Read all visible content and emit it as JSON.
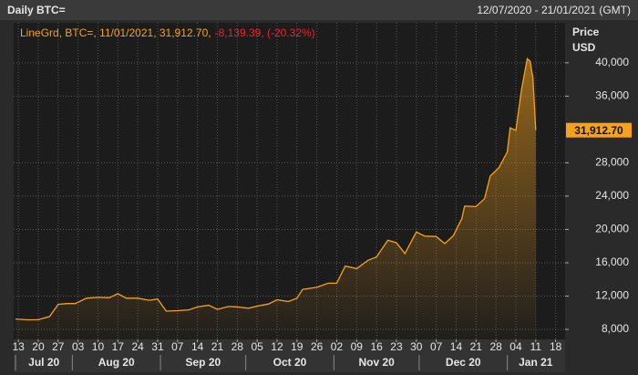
{
  "chart_data": {
    "type": "line",
    "title": "Daily BTC=",
    "subtitle": "12/07/2020 - 21/01/2021 (GMT)",
    "legend_text": "LineGrd, BTC=, 11/01/2021, 31,912.70,",
    "legend_change": "-8,139.39, (-20.32%)",
    "ylabel_lines": [
      "Price",
      "USD"
    ],
    "last_price_label": "31,912.70",
    "x": [
      "2020-07-12",
      "2020-07-16",
      "2020-07-20",
      "2020-07-24",
      "2020-07-27",
      "2020-07-30",
      "2020-08-02",
      "2020-08-06",
      "2020-08-10",
      "2020-08-14",
      "2020-08-17",
      "2020-08-20",
      "2020-08-24",
      "2020-08-28",
      "2020-08-31",
      "2020-09-03",
      "2020-09-07",
      "2020-09-11",
      "2020-09-14",
      "2020-09-18",
      "2020-09-21",
      "2020-09-25",
      "2020-09-28",
      "2020-10-02",
      "2020-10-05",
      "2020-10-09",
      "2020-10-12",
      "2020-10-16",
      "2020-10-19",
      "2020-10-21",
      "2020-10-26",
      "2020-10-30",
      "2020-11-02",
      "2020-11-05",
      "2020-11-09",
      "2020-11-13",
      "2020-11-16",
      "2020-11-20",
      "2020-11-23",
      "2020-11-26",
      "2020-11-30",
      "2020-12-03",
      "2020-12-07",
      "2020-12-10",
      "2020-12-13",
      "2020-12-16",
      "2020-12-17",
      "2020-12-21",
      "2020-12-24",
      "2020-12-26",
      "2020-12-29",
      "2021-01-01",
      "2021-01-02",
      "2021-01-04",
      "2021-01-06",
      "2021-01-08",
      "2021-01-09",
      "2021-01-10",
      "2021-01-11"
    ],
    "series": [
      {
        "name": "BTC=",
        "color": "#f7a21b",
        "values": [
          9250,
          9150,
          9160,
          9550,
          11000,
          11100,
          11100,
          11750,
          11850,
          11800,
          12300,
          11750,
          11750,
          11500,
          11650,
          10200,
          10250,
          10350,
          10700,
          10900,
          10400,
          10750,
          10700,
          10550,
          10800,
          11050,
          11550,
          11350,
          11750,
          12800,
          13050,
          13550,
          13550,
          15600,
          15300,
          16300,
          16700,
          18700,
          18400,
          17100,
          19700,
          19200,
          19150,
          18300,
          19250,
          21300,
          22800,
          22750,
          23700,
          26400,
          27400,
          29300,
          32200,
          31900,
          36800,
          40500,
          40200,
          38200,
          31912.7
        ]
      }
    ],
    "xlim": [
      "2020-07-12",
      "2021-01-21"
    ],
    "xticks": [
      {
        "value": "2020-07-13",
        "label": "13"
      },
      {
        "value": "2020-07-20",
        "label": "20"
      },
      {
        "value": "2020-07-27",
        "label": "27"
      },
      {
        "value": "2020-08-03",
        "label": "03"
      },
      {
        "value": "2020-08-10",
        "label": "10"
      },
      {
        "value": "2020-08-17",
        "label": "17"
      },
      {
        "value": "2020-08-24",
        "label": "24"
      },
      {
        "value": "2020-08-31",
        "label": "31"
      },
      {
        "value": "2020-09-07",
        "label": "07"
      },
      {
        "value": "2020-09-14",
        "label": "14"
      },
      {
        "value": "2020-09-21",
        "label": "21"
      },
      {
        "value": "2020-09-28",
        "label": "28"
      },
      {
        "value": "2020-10-05",
        "label": "05"
      },
      {
        "value": "2020-10-12",
        "label": "12"
      },
      {
        "value": "2020-10-19",
        "label": "19"
      },
      {
        "value": "2020-10-26",
        "label": "26"
      },
      {
        "value": "2020-11-02",
        "label": "02"
      },
      {
        "value": "2020-11-09",
        "label": "09"
      },
      {
        "value": "2020-11-16",
        "label": "16"
      },
      {
        "value": "2020-11-23",
        "label": "23"
      },
      {
        "value": "2020-11-30",
        "label": "30"
      },
      {
        "value": "2020-12-07",
        "label": "07"
      },
      {
        "value": "2020-12-14",
        "label": "14"
      },
      {
        "value": "2020-12-21",
        "label": "21"
      },
      {
        "value": "2020-12-28",
        "label": "28"
      },
      {
        "value": "2021-01-04",
        "label": "04"
      },
      {
        "value": "2021-01-11",
        "label": "11"
      },
      {
        "value": "2021-01-18",
        "label": "18"
      }
    ],
    "month_labels": [
      {
        "value": "2020-07-01",
        "label": "Jul 20"
      },
      {
        "value": "2020-08-01",
        "label": "Aug 20"
      },
      {
        "value": "2020-09-01",
        "label": "Sep 20"
      },
      {
        "value": "2020-10-01",
        "label": "Oct 20"
      },
      {
        "value": "2020-11-01",
        "label": "Nov 20"
      },
      {
        "value": "2020-12-01",
        "label": "Dec 20"
      },
      {
        "value": "2021-01-01",
        "label": "Jan 21"
      }
    ],
    "ylim": [
      6800,
      44800
    ],
    "yticks": [
      {
        "value": 8000,
        "label": "8,000"
      },
      {
        "value": 12000,
        "label": "12,000"
      },
      {
        "value": 16000,
        "label": "16,000"
      },
      {
        "value": 20000,
        "label": "20,000"
      },
      {
        "value": 24000,
        "label": "24,000"
      },
      {
        "value": 28000,
        "label": "28,000"
      },
      {
        "value": 36000,
        "label": "36,000"
      },
      {
        "value": 40000,
        "label": "40,000"
      }
    ],
    "grid": true
  }
}
